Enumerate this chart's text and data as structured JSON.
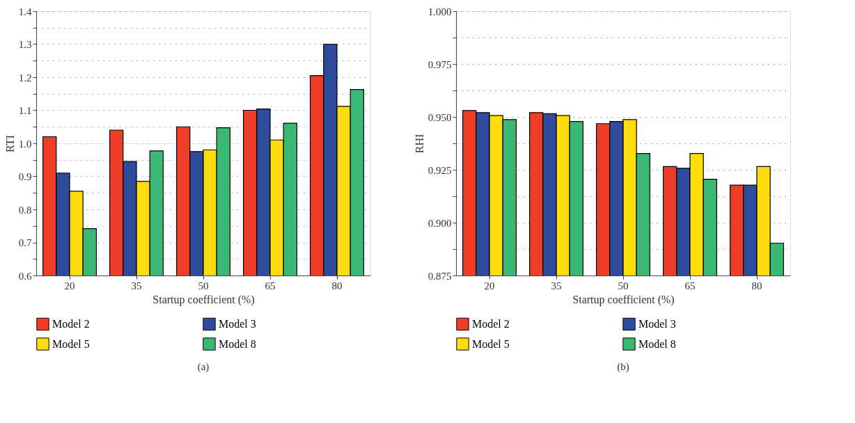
{
  "chart_data": [
    {
      "type": "bar",
      "xlabel": "Startup coefficient (%)",
      "ylabel": "RTI",
      "categories": [
        "20",
        "35",
        "50",
        "65",
        "80"
      ],
      "series": [
        {
          "name": "Model 2",
          "color": "#ee3e28",
          "values": [
            1.02,
            1.04,
            1.05,
            1.1,
            1.205
          ]
        },
        {
          "name": "Model 3",
          "color": "#2f4b9c",
          "values": [
            0.91,
            0.945,
            0.975,
            1.104,
            1.3
          ]
        },
        {
          "name": "Model 5",
          "color": "#fedd10",
          "values": [
            0.855,
            0.885,
            0.98,
            1.01,
            1.112
          ]
        },
        {
          "name": "Model 8",
          "color": "#3bb873",
          "values": [
            0.742,
            0.977,
            1.047,
            1.061,
            1.163
          ]
        }
      ],
      "ylim": [
        0.6,
        1.4
      ],
      "yticks": [
        0.6,
        {
          "value": 0.65,
          "label": null
        },
        0.7,
        {
          "value": 0.75,
          "label": null
        },
        0.8,
        {
          "value": 0.85,
          "label": null
        },
        0.9,
        {
          "value": 0.95,
          "label": null
        },
        {
          "value": 1.0,
          "label": "1.0"
        },
        {
          "value": 1.05,
          "label": null
        },
        1.1,
        {
          "value": 1.15,
          "label": null
        },
        1.2,
        {
          "value": 1.25,
          "label": null
        },
        1.3,
        {
          "value": 1.35,
          "label": null
        },
        1.4
      ],
      "grid": "y",
      "legend": "bottom",
      "annotations": [
        "(a)"
      ]
    },
    {
      "type": "bar",
      "xlabel": "Startup coefficient (%)",
      "ylabel": "RHI",
      "categories": [
        "20",
        "35",
        "50",
        "65",
        "80"
      ],
      "series": [
        {
          "name": "Model 2",
          "color": "#ee3e28",
          "values": [
            0.953,
            0.952,
            0.9468,
            0.9265,
            0.9177
          ]
        },
        {
          "name": "Model 3",
          "color": "#2f4b9c",
          "values": [
            0.952,
            0.9515,
            0.9478,
            0.9257,
            0.9177
          ]
        },
        {
          "name": "Model 5",
          "color": "#fedd10",
          "values": [
            0.9506,
            0.9506,
            0.9487,
            0.9327,
            0.9265
          ]
        },
        {
          "name": "Model 8",
          "color": "#3bb873",
          "values": [
            0.9487,
            0.9478,
            0.9327,
            0.9205,
            0.8903
          ]
        }
      ],
      "ylim": [
        0.875,
        1.0
      ],
      "yticks": [
        0.875,
        {
          "value": 0.8875,
          "label": null
        },
        {
          "value": 0.9,
          "label": "0.900"
        },
        {
          "value": 0.9125,
          "label": null
        },
        0.925,
        {
          "value": 0.9375,
          "label": null
        },
        {
          "value": 0.95,
          "label": "0.950"
        },
        {
          "value": 0.9625,
          "label": null
        },
        0.975,
        {
          "value": 0.9875,
          "label": null
        },
        {
          "value": 1.0,
          "label": "1.000"
        }
      ],
      "grid": "y",
      "legend": "bottom",
      "annotations": [
        "(b)"
      ]
    }
  ]
}
